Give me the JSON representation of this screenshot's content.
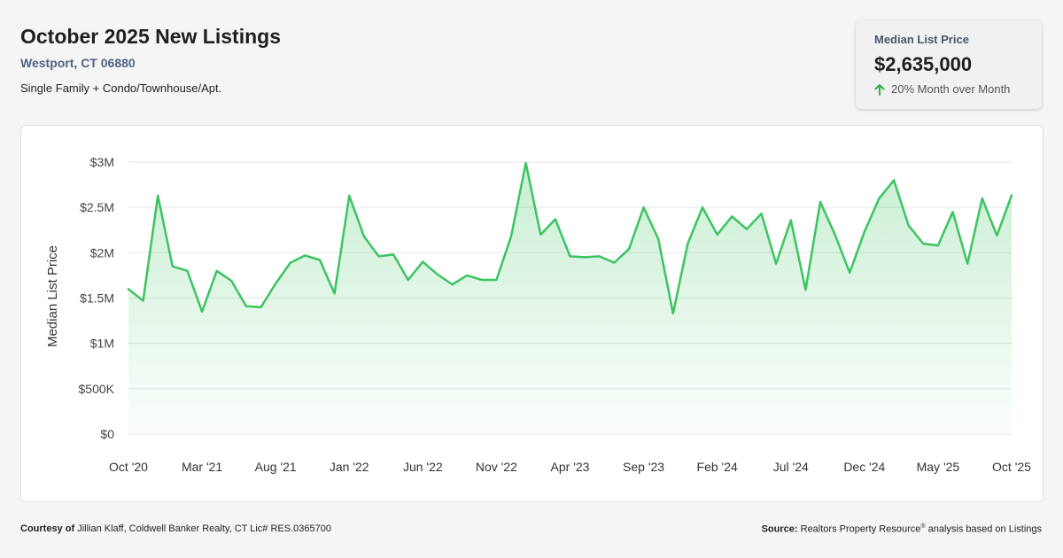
{
  "header": {
    "title": "October 2025 New Listings",
    "location": "Westport, CT 06880",
    "property_type": "Single Family + Condo/Townhouse/Apt."
  },
  "kpi": {
    "label": "Median List Price",
    "value": "$2,635,000",
    "change_text": "20% Month over Month",
    "change_icon": "arrow-up-icon",
    "change_color": "#2bb24c"
  },
  "footer": {
    "courtesy_label": "Courtesy of",
    "courtesy_text": "Jillian Klaff, Coldwell Banker Realty, CT Lic# RES.0365700",
    "source_label": "Source:",
    "source_text_1": "Realtors Property Resource",
    "source_sup": "®",
    "source_text_2": " analysis based on Listings"
  },
  "chart_data": {
    "type": "area",
    "ylabel": "Median List Price",
    "xlabel": "",
    "ylim": [
      0,
      3000000
    ],
    "y_ticks": [
      0,
      500000,
      1000000,
      1500000,
      2000000,
      2500000,
      3000000
    ],
    "y_tick_labels": [
      "$0",
      "$500K",
      "$1M",
      "$1.5M",
      "$2M",
      "$2.5M",
      "$3M"
    ],
    "x_tick_labels": [
      "Oct '20",
      "Mar '21",
      "Aug '21",
      "Jan '22",
      "Jun '22",
      "Nov '22",
      "Apr '23",
      "Sep '23",
      "Feb '24",
      "Jul '24",
      "Dec '24",
      "May '25",
      "Oct '25"
    ],
    "x_tick_interval_months": 5,
    "grid": true,
    "line_color": "#3cc461",
    "fill_color": "#3cc461",
    "series": [
      {
        "values": [
          1600000,
          1470000,
          2630000,
          1850000,
          1800000,
          1350000,
          1800000,
          1690000,
          1410000,
          1400000,
          1660000,
          1890000,
          1970000,
          1920000,
          1550000,
          2630000,
          2180000,
          1960000,
          1980000,
          1700000,
          1900000,
          1760000,
          1650000,
          1750000,
          1700000,
          1700000,
          2180000,
          2990000,
          2200000,
          2370000,
          1960000,
          1950000,
          1960000,
          1890000,
          2040000,
          2500000,
          2150000,
          1330000,
          2100000,
          2500000,
          2200000,
          2400000,
          2260000,
          2430000,
          1880000,
          2360000,
          1590000,
          2560000,
          2200000,
          1780000,
          2230000,
          2600000,
          2800000,
          2300000,
          2100000,
          2080000,
          2450000,
          1880000,
          2600000,
          2190000,
          2635000
        ]
      }
    ]
  }
}
